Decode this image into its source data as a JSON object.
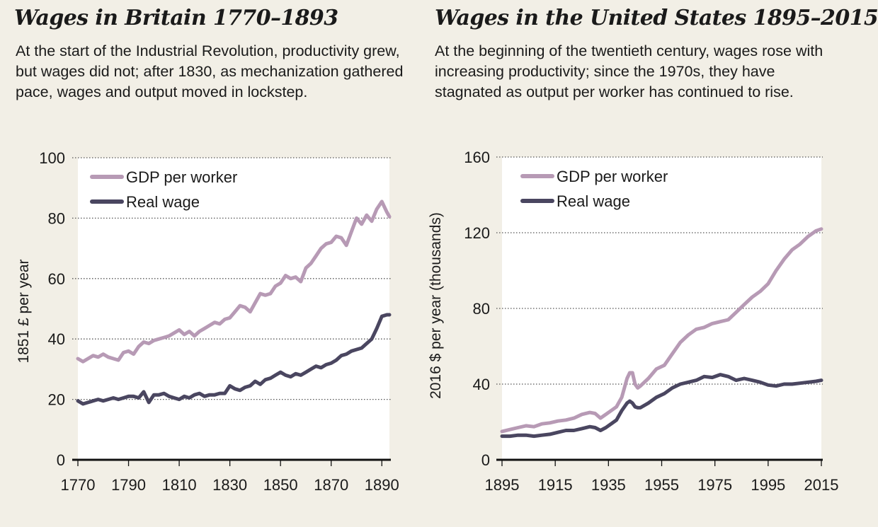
{
  "chart_data": [
    {
      "type": "line",
      "title": "Wages in Britain 1770–1893",
      "subtitle": "At the start of the Industrial Revolution, productivity grew, but wages did not; after 1830, as mechanization gathered pace, wages and output moved in lockstep.",
      "xlabel": "",
      "ylabel": "1851 £ per year",
      "xlim": [
        1770,
        1893
      ],
      "ylim": [
        0,
        100
      ],
      "xticks": [
        1770,
        1790,
        1810,
        1830,
        1850,
        1870,
        1890
      ],
      "yticks": [
        0,
        20,
        40,
        60,
        80,
        100
      ],
      "grid": true,
      "legend": "top-left",
      "x": [
        1770,
        1772,
        1774,
        1776,
        1778,
        1780,
        1782,
        1784,
        1786,
        1788,
        1790,
        1792,
        1794,
        1796,
        1798,
        1800,
        1802,
        1804,
        1806,
        1808,
        1810,
        1812,
        1814,
        1816,
        1818,
        1820,
        1822,
        1824,
        1826,
        1828,
        1830,
        1832,
        1834,
        1836,
        1838,
        1840,
        1842,
        1844,
        1846,
        1848,
        1850,
        1852,
        1854,
        1856,
        1858,
        1860,
        1862,
        1864,
        1866,
        1868,
        1870,
        1872,
        1874,
        1876,
        1878,
        1880,
        1882,
        1884,
        1886,
        1888,
        1890,
        1892,
        1893
      ],
      "series": [
        {
          "name": "GDP per worker",
          "color": "#b79ab5",
          "values": [
            33.5,
            32.5,
            33.5,
            34.5,
            34,
            35,
            34,
            33.5,
            33,
            35.5,
            36,
            35,
            37.5,
            39,
            38.5,
            39.5,
            40,
            40.5,
            41,
            42,
            43,
            41.5,
            42.5,
            41,
            42.5,
            43.5,
            44.5,
            45.5,
            45,
            46.5,
            47,
            49,
            51,
            50.5,
            49,
            52,
            55,
            54.5,
            55,
            57.5,
            58.5,
            61,
            60,
            60.5,
            59,
            63.5,
            65,
            67.5,
            70,
            71.5,
            72,
            74,
            73.5,
            71,
            75.5,
            80,
            78,
            81,
            79,
            83,
            85.5,
            82,
            80.5
          ]
        },
        {
          "name": "Real wage",
          "color": "#4a4660",
          "values": [
            19.5,
            18.5,
            19,
            19.5,
            20,
            19.5,
            20,
            20.5,
            20,
            20.5,
            21,
            21,
            20.5,
            22.5,
            19,
            21.5,
            21.5,
            22,
            21,
            20.5,
            20,
            21,
            20.5,
            21.5,
            22,
            21,
            21.5,
            21.5,
            22,
            22,
            24.5,
            23.5,
            23,
            24,
            24.5,
            26,
            25,
            26.5,
            27,
            28,
            29,
            28,
            27.5,
            28.5,
            28,
            29,
            30,
            31,
            30.5,
            31.5,
            32,
            33,
            34.5,
            35,
            36,
            36.5,
            37,
            38.5,
            40,
            43.5,
            47.5,
            48,
            48
          ]
        }
      ]
    },
    {
      "type": "line",
      "title": "Wages in the United States 1895–2015",
      "subtitle": "At the beginning of the twentieth century, wages rose with increasing productivity; since the 1970s, they have stagnated as output per worker has continued to rise.",
      "xlabel": "",
      "ylabel": "2016 $ per year (thousands)",
      "xlim": [
        1895,
        2015
      ],
      "ylim": [
        0,
        160
      ],
      "xticks": [
        1895,
        1915,
        1935,
        1955,
        1975,
        1995,
        2015
      ],
      "yticks": [
        0,
        40,
        80,
        120,
        160
      ],
      "grid": true,
      "legend": "top-left",
      "x": [
        1895,
        1898,
        1901,
        1904,
        1907,
        1910,
        1913,
        1916,
        1919,
        1922,
        1925,
        1928,
        1930,
        1932,
        1934,
        1936,
        1938,
        1940,
        1942,
        1943,
        1944,
        1945,
        1946,
        1947,
        1950,
        1953,
        1956,
        1959,
        1962,
        1965,
        1968,
        1971,
        1974,
        1977,
        1980,
        1983,
        1986,
        1989,
        1992,
        1995,
        1998,
        2001,
        2004,
        2007,
        2010,
        2013,
        2015
      ],
      "series": [
        {
          "name": "GDP per worker",
          "color": "#b79ab5",
          "values": [
            15,
            16,
            17,
            18,
            17.5,
            19,
            19.5,
            20.5,
            21,
            22,
            24,
            25,
            24.5,
            22,
            24,
            26,
            28,
            33,
            43,
            46,
            46,
            40,
            38,
            39,
            43,
            48,
            50,
            56,
            62,
            66,
            69,
            70,
            72,
            73,
            74,
            78,
            82,
            86,
            89,
            93,
            100,
            106,
            111,
            114,
            118,
            121,
            122
          ]
        },
        {
          "name": "Real wage",
          "color": "#4a4660",
          "values": [
            12.5,
            12.5,
            13,
            13,
            12.5,
            13,
            13.5,
            14.5,
            15.5,
            15.5,
            16.5,
            17.5,
            17,
            15.5,
            17,
            19,
            21,
            26,
            30,
            31,
            30,
            28,
            27.5,
            27.5,
            30,
            33,
            35,
            38,
            40,
            41,
            42,
            44,
            43.5,
            45,
            44,
            42,
            43,
            42,
            41,
            39.5,
            39,
            40,
            40,
            40.5,
            41,
            41.5,
            42
          ]
        }
      ]
    }
  ]
}
